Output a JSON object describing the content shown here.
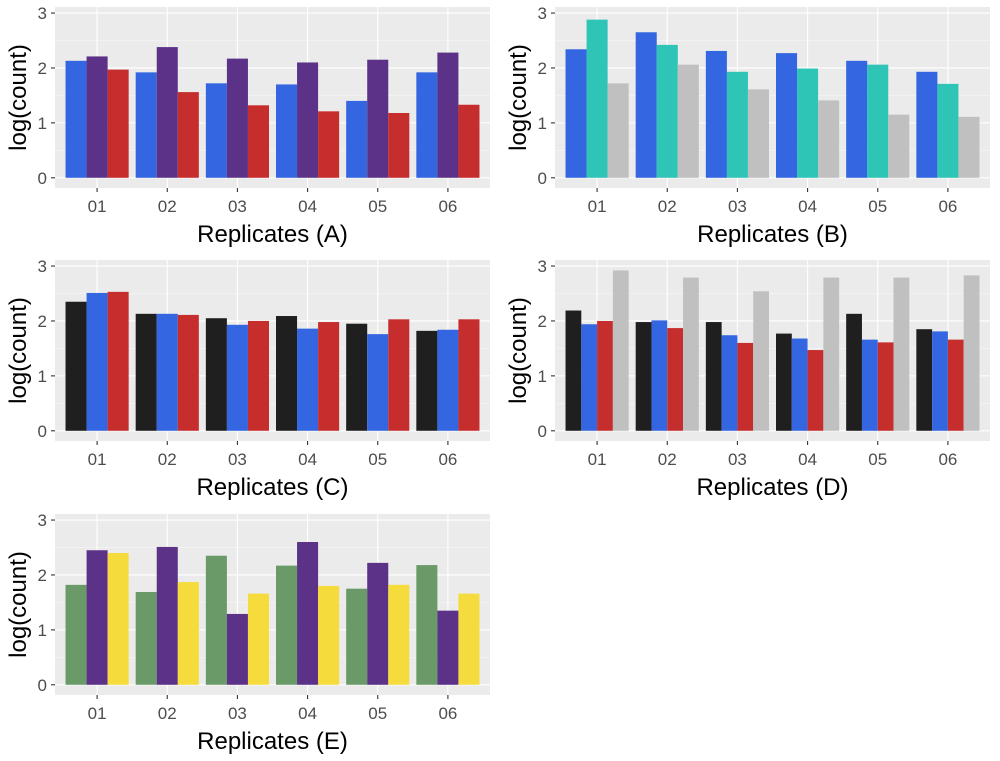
{
  "chart_data": [
    {
      "id": "A",
      "type": "bar",
      "xlabel": "Replicates (A)",
      "ylabel": "log(count)",
      "ylim": [
        0,
        3.1
      ],
      "yticks": [
        0,
        1,
        2,
        3
      ],
      "categories": [
        "01",
        "02",
        "03",
        "04",
        "05",
        "06"
      ],
      "grid": true,
      "legend": "none",
      "series": [
        {
          "color": "#3366e0",
          "values": [
            2.13,
            1.92,
            1.72,
            1.7,
            1.4,
            1.92
          ]
        },
        {
          "color": "#5c3288",
          "values": [
            2.21,
            2.38,
            2.17,
            2.1,
            2.15,
            2.28
          ]
        },
        {
          "color": "#c62d2d",
          "values": [
            1.97,
            1.56,
            1.32,
            1.21,
            1.18,
            1.33
          ]
        }
      ]
    },
    {
      "id": "B",
      "type": "bar",
      "xlabel": "Replicates (B)",
      "ylabel": "log(count)",
      "ylim": [
        0,
        3.1
      ],
      "yticks": [
        0,
        1,
        2,
        3
      ],
      "categories": [
        "01",
        "02",
        "03",
        "04",
        "05",
        "06"
      ],
      "grid": true,
      "legend": "none",
      "series": [
        {
          "color": "#3366e0",
          "values": [
            2.34,
            2.65,
            2.31,
            2.27,
            2.13,
            1.93
          ]
        },
        {
          "color": "#2ec4b6",
          "values": [
            2.88,
            2.42,
            1.93,
            1.99,
            2.06,
            1.71
          ]
        },
        {
          "color": "#c0c0c0",
          "values": [
            1.72,
            2.06,
            1.61,
            1.41,
            1.15,
            1.11
          ]
        }
      ]
    },
    {
      "id": "C",
      "type": "bar",
      "xlabel": "Replicates (C)",
      "ylabel": "log(count)",
      "ylim": [
        0,
        3.1
      ],
      "yticks": [
        0,
        1,
        2,
        3
      ],
      "categories": [
        "01",
        "02",
        "03",
        "04",
        "05",
        "06"
      ],
      "grid": true,
      "legend": "none",
      "series": [
        {
          "color": "#1f1f1f",
          "values": [
            2.35,
            2.13,
            2.05,
            2.09,
            1.95,
            1.82
          ]
        },
        {
          "color": "#3366e0",
          "values": [
            2.51,
            2.13,
            1.93,
            1.86,
            1.76,
            1.84
          ]
        },
        {
          "color": "#c62d2d",
          "values": [
            2.53,
            2.11,
            2.0,
            1.98,
            2.03,
            2.03
          ]
        }
      ]
    },
    {
      "id": "D",
      "type": "bar",
      "xlabel": "Replicates (D)",
      "ylabel": "log(count)",
      "ylim": [
        0,
        3.1
      ],
      "yticks": [
        0,
        1,
        2,
        3
      ],
      "categories": [
        "01",
        "02",
        "03",
        "04",
        "05",
        "06"
      ],
      "grid": true,
      "legend": "none",
      "series": [
        {
          "color": "#1f1f1f",
          "values": [
            2.19,
            1.98,
            1.98,
            1.77,
            2.13,
            1.85
          ]
        },
        {
          "color": "#3366e0",
          "values": [
            1.94,
            2.01,
            1.74,
            1.68,
            1.66,
            1.81
          ]
        },
        {
          "color": "#c62d2d",
          "values": [
            2.0,
            1.87,
            1.6,
            1.47,
            1.61,
            1.66
          ]
        },
        {
          "color": "#c0c0c0",
          "values": [
            2.92,
            2.79,
            2.54,
            2.79,
            2.79,
            2.83
          ]
        }
      ]
    },
    {
      "id": "E",
      "type": "bar",
      "xlabel": "Replicates (E)",
      "ylabel": "log(count)",
      "ylim": [
        0,
        3.1
      ],
      "yticks": [
        0,
        1,
        2,
        3
      ],
      "categories": [
        "01",
        "02",
        "03",
        "04",
        "05",
        "06"
      ],
      "grid": true,
      "legend": "none",
      "series": [
        {
          "color": "#6a9a68",
          "values": [
            1.82,
            1.69,
            2.35,
            2.17,
            1.75,
            2.18
          ]
        },
        {
          "color": "#5c3288",
          "values": [
            2.45,
            2.51,
            1.29,
            2.6,
            2.22,
            1.35
          ]
        },
        {
          "color": "#f5dc3c",
          "values": [
            2.4,
            1.87,
            1.66,
            1.8,
            1.82,
            1.66
          ]
        }
      ]
    }
  ]
}
